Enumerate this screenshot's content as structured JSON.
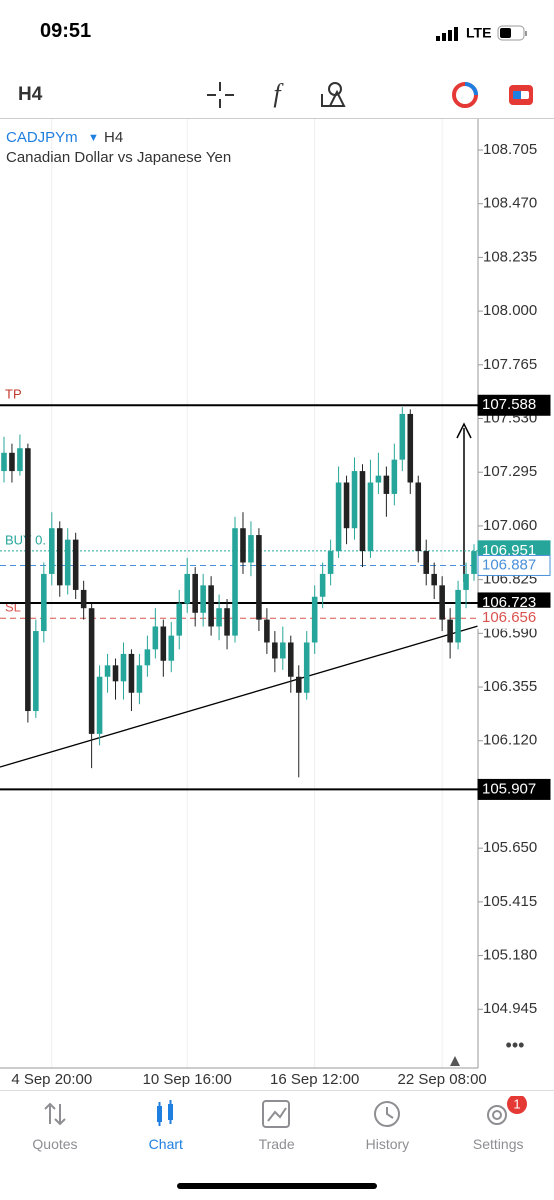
{
  "status_bar": {
    "time": "09:51",
    "network": "LTE"
  },
  "toolbar": {
    "timeframe": "H4"
  },
  "chart_data": {
    "type": "candlestick",
    "symbol": "CADJPYm",
    "timeframe": "H4",
    "title": "Canadian Dollar vs Japanese Yen",
    "up_color": "#26a69a",
    "down_color": "#222222",
    "categories": [
      null,
      null,
      null,
      null,
      null,
      null,
      "4 Sep 20:00",
      null,
      null,
      null,
      null,
      null,
      null,
      null,
      null,
      null,
      null,
      null,
      null,
      null,
      null,
      null,
      null,
      "10 Sep 16:00",
      null,
      null,
      null,
      null,
      null,
      null,
      null,
      null,
      null,
      null,
      null,
      null,
      null,
      null,
      null,
      "16 Sep 12:00",
      null,
      null,
      null,
      null,
      null,
      null,
      null,
      null,
      null,
      null,
      null,
      null,
      null,
      null,
      null,
      "22 Sep 08:00",
      null,
      null,
      null,
      null
    ],
    "open": [
      107.3,
      107.38,
      107.3,
      107.4,
      106.25,
      106.6,
      106.85,
      107.05,
      106.8,
      107.0,
      106.78,
      106.7,
      106.15,
      106.4,
      106.45,
      106.38,
      106.5,
      106.33,
      106.45,
      106.52,
      106.62,
      106.47,
      106.58,
      106.72,
      106.85,
      106.68,
      106.8,
      106.62,
      106.7,
      106.58,
      107.05,
      106.9,
      107.02,
      106.65,
      106.55,
      106.48,
      106.55,
      106.4,
      106.33,
      106.55,
      106.75,
      106.85,
      106.95,
      107.25,
      107.05,
      107.3,
      106.95,
      107.25,
      107.28,
      107.2,
      107.35,
      107.55,
      107.25,
      106.95,
      106.85,
      106.8,
      106.65,
      106.55,
      106.78,
      106.85
    ],
    "high": [
      107.45,
      107.42,
      107.46,
      107.42,
      106.65,
      106.9,
      107.12,
      107.08,
      107.05,
      107.03,
      106.82,
      106.72,
      106.45,
      106.5,
      106.48,
      106.55,
      106.52,
      106.5,
      106.58,
      106.7,
      106.65,
      106.64,
      106.78,
      106.92,
      106.88,
      106.85,
      106.84,
      106.76,
      106.74,
      107.1,
      107.12,
      107.08,
      107.05,
      106.7,
      106.6,
      106.62,
      106.58,
      106.45,
      106.6,
      106.8,
      106.9,
      107.0,
      107.32,
      107.28,
      107.36,
      107.33,
      107.35,
      107.38,
      107.32,
      107.42,
      107.58,
      107.57,
      107.28,
      107.0,
      106.9,
      106.84,
      106.7,
      106.82,
      106.9,
      106.98
    ],
    "low": [
      107.25,
      107.25,
      107.28,
      106.2,
      106.22,
      106.55,
      106.8,
      106.75,
      106.76,
      106.74,
      106.65,
      106.0,
      106.1,
      106.33,
      106.3,
      106.3,
      106.25,
      106.28,
      106.4,
      106.48,
      106.4,
      106.42,
      106.52,
      106.68,
      106.62,
      106.62,
      106.58,
      106.56,
      106.52,
      106.55,
      106.85,
      106.84,
      106.6,
      106.5,
      106.42,
      106.43,
      106.33,
      105.96,
      106.3,
      106.5,
      106.7,
      106.8,
      106.92,
      106.98,
      107.0,
      106.88,
      106.92,
      107.2,
      107.1,
      107.15,
      107.3,
      107.2,
      106.9,
      106.8,
      106.74,
      106.6,
      106.48,
      106.52,
      106.7,
      106.82
    ],
    "close": [
      107.38,
      107.3,
      107.4,
      106.25,
      106.6,
      106.85,
      107.05,
      106.8,
      107.0,
      106.78,
      106.7,
      106.15,
      106.4,
      106.45,
      106.38,
      106.5,
      106.33,
      106.45,
      106.52,
      106.62,
      106.47,
      106.58,
      106.72,
      106.85,
      106.68,
      106.8,
      106.62,
      106.7,
      106.58,
      107.05,
      106.9,
      107.02,
      106.65,
      106.55,
      106.48,
      106.55,
      106.4,
      106.33,
      106.55,
      106.75,
      106.85,
      106.95,
      107.25,
      107.05,
      107.3,
      106.95,
      107.25,
      107.28,
      107.2,
      107.35,
      107.55,
      107.25,
      106.95,
      106.85,
      106.8,
      106.65,
      106.55,
      106.78,
      106.85,
      106.95
    ],
    "ylim": [
      104.688,
      108.845
    ],
    "yticks": [
      108.705,
      {
        "value": 108.47,
        "label": "108.470"
      },
      108.235,
      {
        "value": 108,
        "label": "108.000"
      },
      107.765,
      {
        "value": 107.53,
        "label": "107.530"
      },
      107.295,
      {
        "value": 107.06,
        "label": "107.060"
      },
      106.825,
      {
        "value": 106.59,
        "label": "106.590"
      },
      106.355,
      {
        "value": 106.12,
        "label": "106.120"
      },
      {
        "value": 105.65,
        "label": "105.650"
      },
      105.415,
      {
        "value": 105.18,
        "label": "105.180"
      },
      104.945
    ],
    "hlines": [
      107.588,
      106.723,
      105.907
    ],
    "levels": [
      {
        "name": "TP",
        "value": 107.588,
        "color": "#c0392b",
        "style": "none"
      },
      {
        "name": "BUY 0.",
        "value": 106.951,
        "color": "#26a69a",
        "style": "dotted"
      },
      {
        "name": "SL",
        "value": 106.656,
        "color": "#d9534f",
        "style": "dashed"
      }
    ],
    "bid": {
      "value": 106.887,
      "color": "#4a90d9"
    },
    "trendline": {
      "start": 106.005,
      "end": 106.622
    }
  },
  "nav": {
    "items": [
      "Quotes",
      "Chart",
      "Trade",
      "History",
      "Settings"
    ],
    "badge": "1"
  }
}
